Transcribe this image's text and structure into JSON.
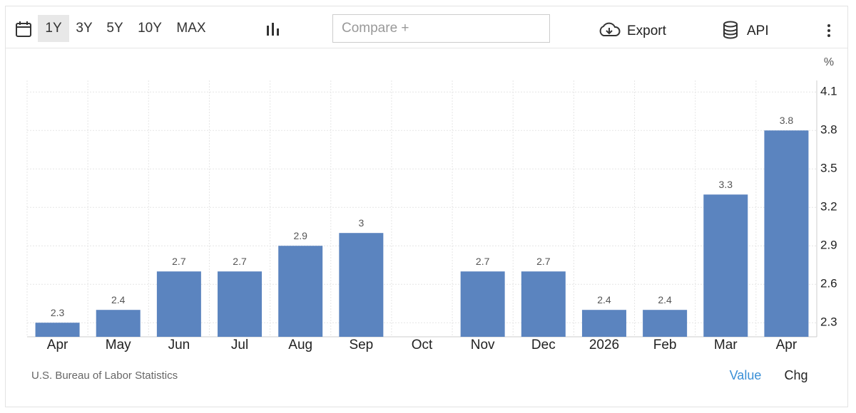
{
  "toolbar": {
    "ranges": [
      "1Y",
      "3Y",
      "5Y",
      "10Y",
      "MAX"
    ],
    "compare_placeholder": "Compare +",
    "export": "Export",
    "api": "API"
  },
  "chart_data": {
    "type": "bar",
    "y_axis_label": "%",
    "categories": [
      "Apr",
      "May",
      "Jun",
      "Jul",
      "Aug",
      "Sep",
      "Oct",
      "Nov",
      "Dec",
      "2026",
      "Feb",
      "Mar",
      "Apr"
    ],
    "values": [
      2.3,
      2.4,
      2.7,
      2.7,
      2.9,
      3,
      null,
      2.7,
      2.7,
      2.4,
      2.4,
      3.3,
      3.8
    ],
    "color": "#5b84bf",
    "ylim": [
      2.19,
      4.19
    ],
    "yticks": [
      2.3,
      2.6,
      2.9,
      3.2,
      3.5,
      3.8,
      4.1
    ],
    "grid": true
  },
  "footer": {
    "source": "U.S. Bureau of Labor Statistics",
    "modes": [
      "Value",
      "Chg"
    ]
  }
}
